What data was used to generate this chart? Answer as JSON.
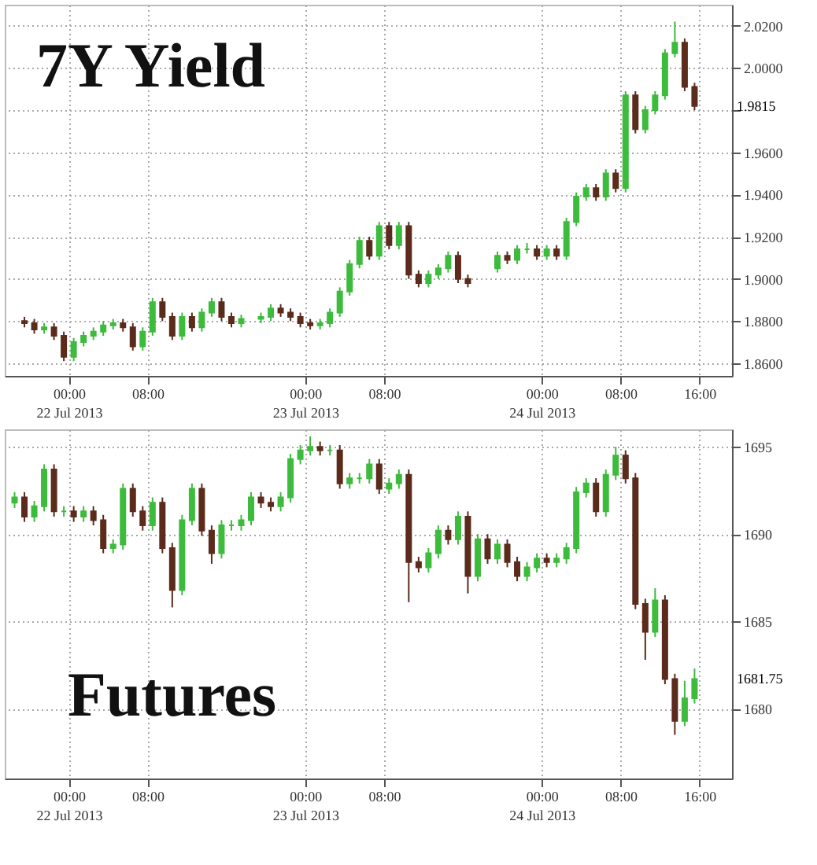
{
  "chart_data": [
    {
      "type": "candlestick",
      "title": "7Y Yield",
      "x": [
        "2013-07-21T19:30",
        "2013-07-21T20:30",
        "2013-07-21T21:30",
        "2013-07-21T22:30",
        "2013-07-21T23:30",
        "2013-07-22T00:30",
        "2013-07-22T01:30",
        "2013-07-22T02:30",
        "2013-07-22T03:30",
        "2013-07-22T04:30",
        "2013-07-22T05:30",
        "2013-07-22T06:30",
        "2013-07-22T07:30",
        "2013-07-22T08:30",
        "2013-07-22T09:30",
        "2013-07-22T10:30",
        "2013-07-22T11:30",
        "2013-07-22T12:30",
        "2013-07-22T13:30",
        "2013-07-22T14:30",
        "2013-07-22T15:30",
        "2013-07-22T16:30",
        "2013-07-22T17:30",
        "2013-07-22T19:30",
        "2013-07-22T20:30",
        "2013-07-22T21:30",
        "2013-07-22T22:30",
        "2013-07-22T23:30",
        "2013-07-23T00:30",
        "2013-07-23T01:30",
        "2013-07-23T02:30",
        "2013-07-23T03:30",
        "2013-07-23T04:30",
        "2013-07-23T05:30",
        "2013-07-23T06:30",
        "2013-07-23T07:30",
        "2013-07-23T08:30",
        "2013-07-23T09:30",
        "2013-07-23T10:30",
        "2013-07-23T11:30",
        "2013-07-23T12:30",
        "2013-07-23T13:30",
        "2013-07-23T14:30",
        "2013-07-23T15:30",
        "2013-07-23T16:30",
        "2013-07-23T19:30",
        "2013-07-23T20:30",
        "2013-07-23T21:30",
        "2013-07-23T22:30",
        "2013-07-23T23:30",
        "2013-07-24T00:30",
        "2013-07-24T01:30",
        "2013-07-24T02:30",
        "2013-07-24T03:30",
        "2013-07-24T04:30",
        "2013-07-24T05:30",
        "2013-07-24T06:30",
        "2013-07-24T07:30",
        "2013-07-24T08:30",
        "2013-07-24T09:30",
        "2013-07-24T10:30",
        "2013-07-24T11:30",
        "2013-07-24T12:30",
        "2013-07-24T13:30",
        "2013-07-24T14:30",
        "2013-07-24T15:30"
      ],
      "ohlc": [
        [
          1.88,
          1.882,
          1.877,
          1.879
        ],
        [
          1.879,
          1.881,
          1.874,
          1.876
        ],
        [
          1.876,
          1.879,
          1.874,
          1.877
        ],
        [
          1.877,
          1.879,
          1.871,
          1.873
        ],
        [
          1.873,
          1.875,
          1.861,
          1.863
        ],
        [
          1.863,
          1.872,
          1.861,
          1.87
        ],
        [
          1.87,
          1.875,
          1.868,
          1.873
        ],
        [
          1.873,
          1.877,
          1.871,
          1.875
        ],
        [
          1.875,
          1.88,
          1.873,
          1.878
        ],
        [
          1.878,
          1.881,
          1.876,
          1.879
        ],
        [
          1.879,
          1.881,
          1.875,
          1.877
        ],
        [
          1.877,
          1.879,
          1.866,
          1.868
        ],
        [
          1.868,
          1.877,
          1.866,
          1.875
        ],
        [
          1.875,
          1.891,
          1.873,
          1.889
        ],
        [
          1.889,
          1.891,
          1.88,
          1.882
        ],
        [
          1.882,
          1.884,
          1.871,
          1.873
        ],
        [
          1.873,
          1.884,
          1.871,
          1.882
        ],
        [
          1.882,
          1.884,
          1.875,
          1.877
        ],
        [
          1.877,
          1.886,
          1.875,
          1.884
        ],
        [
          1.884,
          1.891,
          1.882,
          1.889
        ],
        [
          1.889,
          1.891,
          1.88,
          1.882
        ],
        [
          1.882,
          1.884,
          1.877,
          1.879
        ],
        [
          1.879,
          1.883,
          1.877,
          1.881
        ],
        [
          1.881,
          1.884,
          1.879,
          1.882
        ],
        [
          1.882,
          1.888,
          1.88,
          1.886
        ],
        [
          1.886,
          1.888,
          1.882,
          1.884
        ],
        [
          1.884,
          1.886,
          1.88,
          1.882
        ],
        [
          1.882,
          1.884,
          1.877,
          1.879
        ],
        [
          1.879,
          1.881,
          1.876,
          1.878
        ],
        [
          1.878,
          1.881,
          1.876,
          1.879
        ],
        [
          1.879,
          1.886,
          1.877,
          1.884
        ],
        [
          1.884,
          1.896,
          1.882,
          1.894
        ],
        [
          1.894,
          1.909,
          1.892,
          1.907
        ],
        [
          1.907,
          1.92,
          1.905,
          1.918
        ],
        [
          1.918,
          1.92,
          1.909,
          1.911
        ],
        [
          1.911,
          1.927,
          1.909,
          1.925
        ],
        [
          1.925,
          1.927,
          1.914,
          1.916
        ],
        [
          1.916,
          1.927,
          1.914,
          1.925
        ],
        [
          1.925,
          1.927,
          1.9,
          1.902
        ],
        [
          1.902,
          1.904,
          1.896,
          1.898
        ],
        [
          1.898,
          1.904,
          1.896,
          1.902
        ],
        [
          1.902,
          1.907,
          1.9,
          1.905
        ],
        [
          1.905,
          1.913,
          1.903,
          1.911
        ],
        [
          1.911,
          1.913,
          1.898,
          1.9
        ],
        [
          1.9,
          1.902,
          1.896,
          1.898
        ],
        [
          1.905,
          1.913,
          1.903,
          1.911
        ],
        [
          1.911,
          1.913,
          1.907,
          1.909
        ],
        [
          1.909,
          1.916,
          1.907,
          1.914
        ],
        [
          1.914,
          1.917,
          1.912,
          1.914
        ],
        [
          1.914,
          1.916,
          1.909,
          1.911
        ],
        [
          1.911,
          1.916,
          1.909,
          1.914
        ],
        [
          1.914,
          1.916,
          1.909,
          1.911
        ],
        [
          1.911,
          1.929,
          1.909,
          1.927
        ],
        [
          1.927,
          1.941,
          1.925,
          1.939
        ],
        [
          1.939,
          1.945,
          1.937,
          1.943
        ],
        [
          1.943,
          1.945,
          1.937,
          1.939
        ],
        [
          1.939,
          1.952,
          1.937,
          1.95
        ],
        [
          1.95,
          1.952,
          1.941,
          1.943
        ],
        [
          1.943,
          1.989,
          1.941,
          1.987
        ],
        [
          1.987,
          1.989,
          1.969,
          1.971
        ],
        [
          1.971,
          1.982,
          1.969,
          1.98
        ],
        [
          1.98,
          1.989,
          1.978,
          1.987
        ],
        [
          1.987,
          2.009,
          1.985,
          2.007
        ],
        [
          2.007,
          2.022,
          2.005,
          2.012
        ],
        [
          2.012,
          2.014,
          1.989,
          1.991
        ],
        [
          1.991,
          1.993,
          1.98,
          1.982
        ]
      ],
      "xlim": [
        "2013-07-21T17:30",
        "2013-07-24T19:18"
      ],
      "xticks": [
        {
          "value": "2013-07-22T00:00",
          "label": "00:00\n22 Jul 2013"
        },
        {
          "value": "2013-07-22T08:00",
          "label": "08:00"
        },
        {
          "value": "2013-07-23T00:00",
          "label": "00:00\n23 Jul 2013"
        },
        {
          "value": "2013-07-23T08:00",
          "label": "08:00"
        },
        {
          "value": "2013-07-24T00:00",
          "label": "00:00\n24 Jul 2013"
        },
        {
          "value": "2013-07-24T08:00",
          "label": "08:00"
        },
        {
          "value": "2013-07-24T16:00",
          "label": "16:00"
        }
      ],
      "ylim": [
        1.854,
        2.03
      ],
      "yticks": [
        {
          "value": 1.86,
          "label": "1.8600"
        },
        {
          "value": 1.88,
          "label": "1.8800"
        },
        {
          "value": 1.9,
          "label": "1.9000"
        },
        {
          "value": 1.92,
          "label": "1.9200"
        },
        {
          "value": 1.94,
          "label": "1.9400"
        },
        {
          "value": 1.96,
          "label": "1.9600"
        },
        {
          "value": 1.98,
          "label": null
        },
        {
          "value": 2.0,
          "label": "2.0000"
        },
        {
          "value": 2.02,
          "label": "2.0200"
        }
      ],
      "grid": true,
      "annotations": [
        "1.9815"
      ]
    },
    {
      "type": "candlestick",
      "title": "Futures",
      "x": [
        "2013-07-21T18:30",
        "2013-07-21T19:30",
        "2013-07-21T20:30",
        "2013-07-21T21:30",
        "2013-07-21T22:30",
        "2013-07-21T23:30",
        "2013-07-22T00:30",
        "2013-07-22T01:30",
        "2013-07-22T02:30",
        "2013-07-22T03:30",
        "2013-07-22T04:30",
        "2013-07-22T05:30",
        "2013-07-22T06:30",
        "2013-07-22T07:30",
        "2013-07-22T08:30",
        "2013-07-22T09:30",
        "2013-07-22T10:30",
        "2013-07-22T11:30",
        "2013-07-22T12:30",
        "2013-07-22T13:30",
        "2013-07-22T14:30",
        "2013-07-22T15:30",
        "2013-07-22T16:30",
        "2013-07-22T17:30",
        "2013-07-22T18:30",
        "2013-07-22T19:30",
        "2013-07-22T20:30",
        "2013-07-22T21:30",
        "2013-07-22T22:30",
        "2013-07-22T23:30",
        "2013-07-23T00:30",
        "2013-07-23T01:30",
        "2013-07-23T02:30",
        "2013-07-23T03:30",
        "2013-07-23T04:30",
        "2013-07-23T05:30",
        "2013-07-23T06:30",
        "2013-07-23T07:30",
        "2013-07-23T08:30",
        "2013-07-23T09:30",
        "2013-07-23T10:30",
        "2013-07-23T11:30",
        "2013-07-23T12:30",
        "2013-07-23T13:30",
        "2013-07-23T14:30",
        "2013-07-23T15:30",
        "2013-07-23T16:30",
        "2013-07-23T17:30",
        "2013-07-23T18:30",
        "2013-07-23T19:30",
        "2013-07-23T20:30",
        "2013-07-23T21:30",
        "2013-07-23T22:30",
        "2013-07-23T23:30",
        "2013-07-24T00:30",
        "2013-07-24T01:30",
        "2013-07-24T02:30",
        "2013-07-24T03:30",
        "2013-07-24T04:30",
        "2013-07-24T05:30",
        "2013-07-24T06:30",
        "2013-07-24T07:30",
        "2013-07-24T08:30",
        "2013-07-24T09:30",
        "2013-07-24T10:30",
        "2013-07-24T11:30",
        "2013-07-24T12:30",
        "2013-07-24T13:30",
        "2013-07-24T14:30",
        "2013-07-24T15:30"
      ],
      "ohlc": [
        [
          1691.8,
          1692.4,
          1691.5,
          1692.1
        ],
        [
          1692.1,
          1692.4,
          1690.7,
          1691.0
        ],
        [
          1691.0,
          1691.9,
          1690.7,
          1691.6
        ],
        [
          1691.6,
          1694.0,
          1691.3,
          1693.7
        ],
        [
          1693.7,
          1694.0,
          1691.0,
          1691.3
        ],
        [
          1691.3,
          1691.6,
          1691.0,
          1691.3
        ],
        [
          1691.3,
          1691.6,
          1690.7,
          1691.0
        ],
        [
          1691.0,
          1691.6,
          1690.7,
          1691.3
        ],
        [
          1691.3,
          1691.6,
          1690.5,
          1690.8
        ],
        [
          1690.8,
          1691.1,
          1688.9,
          1689.2
        ],
        [
          1689.2,
          1689.7,
          1688.9,
          1689.4
        ],
        [
          1689.4,
          1692.9,
          1689.1,
          1692.6
        ],
        [
          1692.6,
          1692.9,
          1691.0,
          1691.3
        ],
        [
          1691.3,
          1691.6,
          1690.2,
          1690.5
        ],
        [
          1690.5,
          1692.1,
          1690.2,
          1691.8
        ],
        [
          1691.8,
          1692.1,
          1688.9,
          1689.2
        ],
        [
          1689.2,
          1689.5,
          1685.8,
          1686.8
        ],
        [
          1686.8,
          1691.1,
          1686.5,
          1690.8
        ],
        [
          1690.8,
          1692.9,
          1690.5,
          1692.6
        ],
        [
          1692.6,
          1692.9,
          1689.9,
          1690.2
        ],
        [
          1690.2,
          1690.5,
          1688.3,
          1688.9
        ],
        [
          1688.9,
          1690.8,
          1688.6,
          1690.5
        ],
        [
          1690.5,
          1690.8,
          1690.2,
          1690.5
        ],
        [
          1690.5,
          1691.1,
          1690.2,
          1690.8
        ],
        [
          1690.8,
          1692.4,
          1690.5,
          1692.1
        ],
        [
          1692.1,
          1692.4,
          1691.5,
          1691.8
        ],
        [
          1691.8,
          1692.1,
          1691.3,
          1691.6
        ],
        [
          1691.6,
          1692.4,
          1691.3,
          1692.1
        ],
        [
          1692.1,
          1694.6,
          1691.8,
          1694.3
        ],
        [
          1694.3,
          1695.1,
          1694.0,
          1694.8
        ],
        [
          1694.8,
          1695.6,
          1694.5,
          1695.0
        ],
        [
          1695.0,
          1695.3,
          1694.5,
          1694.8
        ],
        [
          1694.8,
          1695.1,
          1694.5,
          1694.8
        ],
        [
          1694.8,
          1695.1,
          1692.6,
          1692.9
        ],
        [
          1692.9,
          1693.5,
          1692.6,
          1693.2
        ],
        [
          1693.2,
          1693.5,
          1692.9,
          1693.2
        ],
        [
          1693.2,
          1694.3,
          1692.9,
          1694.0
        ],
        [
          1694.0,
          1694.3,
          1692.3,
          1692.6
        ],
        [
          1692.6,
          1693.2,
          1692.3,
          1692.9
        ],
        [
          1692.9,
          1693.7,
          1692.6,
          1693.4
        ],
        [
          1693.4,
          1693.7,
          1686.1,
          1688.4
        ],
        [
          1688.4,
          1688.7,
          1687.8,
          1688.1
        ],
        [
          1688.1,
          1689.2,
          1687.8,
          1688.9
        ],
        [
          1688.9,
          1690.5,
          1688.6,
          1690.2
        ],
        [
          1690.2,
          1690.5,
          1689.4,
          1689.7
        ],
        [
          1689.7,
          1691.3,
          1689.4,
          1691.0
        ],
        [
          1691.0,
          1691.3,
          1686.6,
          1687.6
        ],
        [
          1687.6,
          1690.0,
          1687.3,
          1689.7
        ],
        [
          1689.7,
          1690.0,
          1688.3,
          1688.6
        ],
        [
          1688.6,
          1689.7,
          1688.3,
          1689.4
        ],
        [
          1689.4,
          1689.7,
          1688.1,
          1688.4
        ],
        [
          1688.4,
          1688.7,
          1687.3,
          1687.6
        ],
        [
          1687.6,
          1688.4,
          1687.3,
          1688.1
        ],
        [
          1688.1,
          1688.9,
          1687.8,
          1688.6
        ],
        [
          1688.6,
          1688.9,
          1688.1,
          1688.4
        ],
        [
          1688.4,
          1688.9,
          1688.1,
          1688.6
        ],
        [
          1688.6,
          1689.5,
          1688.3,
          1689.2
        ],
        [
          1689.2,
          1692.7,
          1688.9,
          1692.4
        ],
        [
          1692.4,
          1693.2,
          1692.1,
          1692.9
        ],
        [
          1692.9,
          1693.2,
          1691.0,
          1691.3
        ],
        [
          1691.3,
          1693.7,
          1691.0,
          1693.4
        ],
        [
          1693.4,
          1695.0,
          1693.1,
          1694.5
        ],
        [
          1694.5,
          1694.8,
          1692.9,
          1693.2
        ],
        [
          1693.2,
          1693.5,
          1685.7,
          1686.0
        ],
        [
          1686.0,
          1686.3,
          1682.8,
          1684.4
        ],
        [
          1684.4,
          1686.9,
          1684.1,
          1686.2
        ],
        [
          1686.2,
          1686.5,
          1681.4,
          1681.7
        ],
        [
          1681.7,
          1682.0,
          1678.5,
          1679.3
        ],
        [
          1679.3,
          1681.6,
          1679.0,
          1680.6
        ],
        [
          1680.6,
          1682.3,
          1680.3,
          1681.7
        ]
      ],
      "xlim": [
        "2013-07-21T17:30",
        "2013-07-24T19:18"
      ],
      "xticks": [
        {
          "value": "2013-07-22T00:00",
          "label": "00:00\n22 Jul 2013"
        },
        {
          "value": "2013-07-22T08:00",
          "label": "08:00"
        },
        {
          "value": "2013-07-23T00:00",
          "label": "00:00\n23 Jul 2013"
        },
        {
          "value": "2013-07-23T08:00",
          "label": "08:00"
        },
        {
          "value": "2013-07-24T00:00",
          "label": "00:00\n24 Jul 2013"
        },
        {
          "value": "2013-07-24T08:00",
          "label": "08:00"
        },
        {
          "value": "2013-07-24T16:00",
          "label": "16:00"
        }
      ],
      "ylim": [
        1676,
        1696
      ],
      "yticks": [
        1680,
        1685,
        1690,
        1695
      ],
      "grid": true,
      "annotations": [
        "1681.75"
      ]
    }
  ]
}
